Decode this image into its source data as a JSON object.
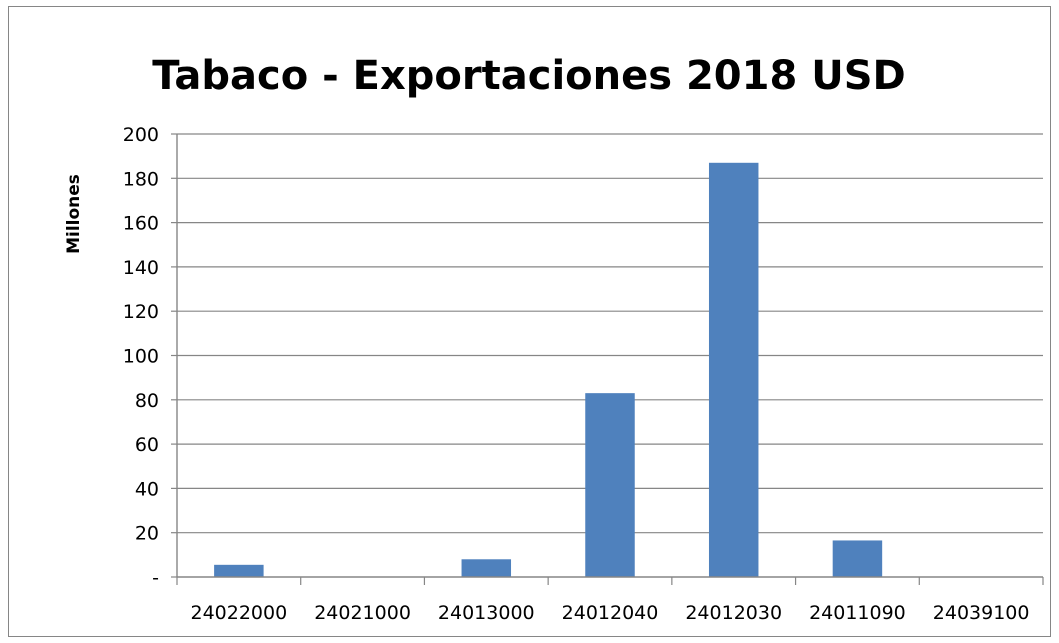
{
  "chart_data": {
    "type": "bar",
    "title": "Tabaco - Exportaciones 2018 USD",
    "xlabel": "",
    "ylabel": "Millones",
    "categories": [
      "24022000",
      "24021000",
      "24013000",
      "24012040",
      "24012030",
      "24011090",
      "24039100"
    ],
    "values": [
      5.5,
      0,
      8,
      83,
      187,
      16.5,
      0
    ],
    "ylim": [
      0,
      200
    ],
    "yticks": [
      0,
      20,
      40,
      60,
      80,
      100,
      120,
      140,
      160,
      180,
      200
    ],
    "ytick_labels": [
      "-",
      "20",
      "40",
      "60",
      "80",
      "100",
      "120",
      "140",
      "160",
      "180",
      "200"
    ],
    "grid": true,
    "legend": "none",
    "bar_color": "#4f81bd",
    "grid_color": "#868686"
  }
}
